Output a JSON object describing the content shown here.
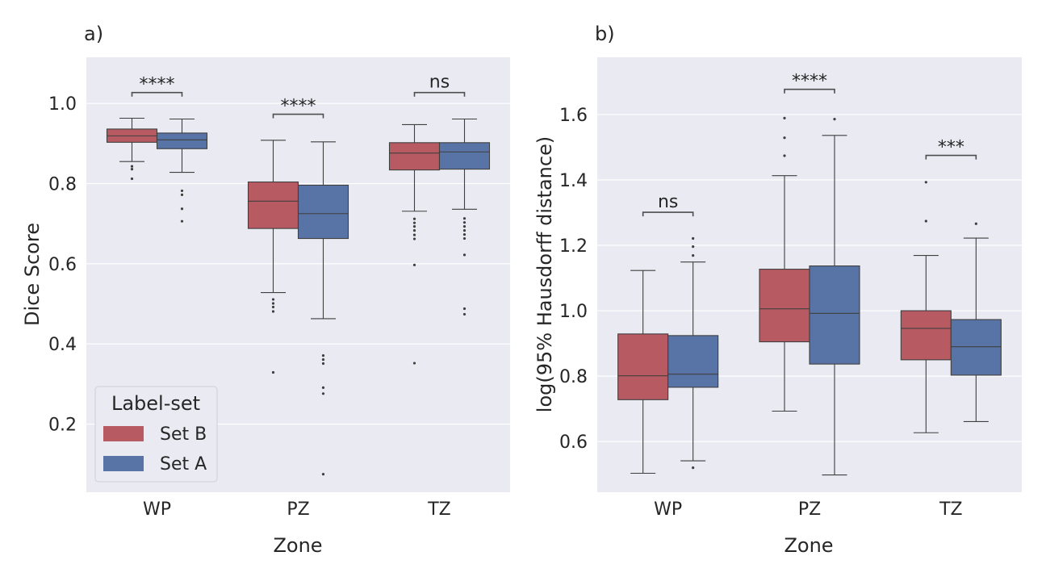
{
  "colors": {
    "set_b": "#b85a62",
    "set_a": "#5874a6",
    "background": "#eaeaf2"
  },
  "chart_data": [
    {
      "panel": "a)",
      "type": "box",
      "xlabel": "Zone",
      "ylabel": "Dice Score",
      "categories": [
        "WP",
        "PZ",
        "TZ"
      ],
      "ylim": [
        0.03,
        1.115
      ],
      "yticks": [
        0.2,
        0.4,
        0.6,
        0.8,
        1.0
      ],
      "ytick_labels": [
        "0.2",
        "0.4",
        "0.6",
        "0.8",
        "1.0"
      ],
      "grid": true,
      "legend": {
        "title": "Label-set",
        "placement": "lower-left",
        "entries": [
          {
            "label": "Set B",
            "color_key": "set_b"
          },
          {
            "label": "Set A",
            "color_key": "set_a"
          }
        ]
      },
      "series": [
        {
          "name": "Set B",
          "color_key": "set_b",
          "boxes": [
            {
              "whislo": 0.855,
              "q1": 0.903,
              "med": 0.919,
              "q3": 0.936,
              "whishi": 0.963,
              "fliers": [
                0.843,
                0.836,
                0.812
              ]
            },
            {
              "whislo": 0.528,
              "q1": 0.688,
              "med": 0.756,
              "q3": 0.804,
              "whishi": 0.908,
              "fliers": [
                0.511,
                0.501,
                0.492,
                0.481,
                0.329
              ]
            },
            {
              "whislo": 0.731,
              "q1": 0.834,
              "med": 0.876,
              "q3": 0.902,
              "whishi": 0.947,
              "fliers": [
                0.712,
                0.702,
                0.693,
                0.683,
                0.672,
                0.662,
                0.597,
                0.352
              ]
            }
          ]
        },
        {
          "name": "Set A",
          "color_key": "set_a",
          "boxes": [
            {
              "whislo": 0.828,
              "q1": 0.887,
              "med": 0.909,
              "q3": 0.926,
              "whishi": 0.961,
              "fliers": [
                0.782,
                0.772,
                0.737,
                0.706
              ]
            },
            {
              "whislo": 0.463,
              "q1": 0.663,
              "med": 0.725,
              "q3": 0.796,
              "whishi": 0.904,
              "fliers": [
                0.371,
                0.361,
                0.351,
                0.291,
                0.276,
                0.075
              ]
            },
            {
              "whislo": 0.736,
              "q1": 0.836,
              "med": 0.879,
              "q3": 0.902,
              "whishi": 0.961,
              "fliers": [
                0.713,
                0.703,
                0.693,
                0.683,
                0.673,
                0.663,
                0.622,
                0.488,
                0.474
              ]
            }
          ]
        }
      ],
      "significance": [
        {
          "category": "WP",
          "label": "****",
          "y": 1.027
        },
        {
          "category": "PZ",
          "label": "****",
          "y": 0.973
        },
        {
          "category": "TZ",
          "label": "ns",
          "y": 1.027
        }
      ]
    },
    {
      "panel": "b)",
      "type": "box",
      "xlabel": "Zone",
      "ylabel": "log(95% Hausdorff distance)",
      "categories": [
        "WP",
        "PZ",
        "TZ"
      ],
      "ylim": [
        0.445,
        1.775
      ],
      "yticks": [
        0.6,
        0.8,
        1.0,
        1.2,
        1.4,
        1.6
      ],
      "ytick_labels": [
        "0.6",
        "0.8",
        "1.0",
        "1.2",
        "1.4",
        "1.6"
      ],
      "grid": true,
      "series": [
        {
          "name": "Set B",
          "color_key": "set_b",
          "boxes": [
            {
              "whislo": 0.503,
              "q1": 0.728,
              "med": 0.801,
              "q3": 0.929,
              "whishi": 1.123,
              "fliers": []
            },
            {
              "whislo": 0.693,
              "q1": 0.905,
              "med": 1.006,
              "q3": 1.127,
              "whishi": 1.413,
              "fliers": [
                1.474,
                1.529,
                1.589
              ]
            },
            {
              "whislo": 0.627,
              "q1": 0.85,
              "med": 0.946,
              "q3": 1.0,
              "whishi": 1.169,
              "fliers": [
                1.274,
                1.393
              ]
            }
          ]
        },
        {
          "name": "Set A",
          "color_key": "set_a",
          "boxes": [
            {
              "whislo": 0.541,
              "q1": 0.766,
              "med": 0.806,
              "q3": 0.924,
              "whishi": 1.149,
              "fliers": [
                0.52,
                1.169,
                1.196,
                1.221
              ]
            },
            {
              "whislo": 0.498,
              "q1": 0.837,
              "med": 0.992,
              "q3": 1.137,
              "whishi": 1.536,
              "fliers": [
                1.586
              ]
            },
            {
              "whislo": 0.661,
              "q1": 0.803,
              "med": 0.89,
              "q3": 0.973,
              "whishi": 1.222,
              "fliers": [
                1.266
              ]
            }
          ]
        }
      ],
      "significance": [
        {
          "category": "WP",
          "label": "ns",
          "y": 1.301
        },
        {
          "category": "PZ",
          "label": "****",
          "y": 1.677
        },
        {
          "category": "TZ",
          "label": "***",
          "y": 1.475
        }
      ]
    }
  ]
}
